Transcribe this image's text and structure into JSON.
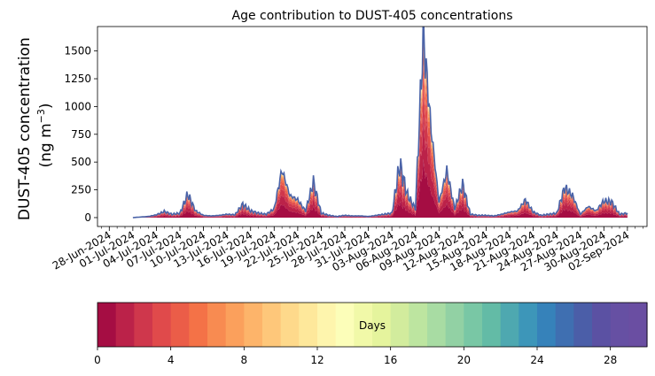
{
  "chart_data": [
    {
      "type": "area",
      "title": "Age contribution to DUST-405 concentrations",
      "ylabel_line1": "DUST-405 concentration",
      "ylabel_line2_prefix": "(ng m",
      "ylabel_line2_sup": "−3",
      "ylabel_line2_suffix": ")",
      "xlabel": "",
      "ylim": [
        -80,
        1720
      ],
      "yticks": [
        0,
        250,
        500,
        750,
        1000,
        1250,
        1500
      ],
      "x_start": "2024-06-28",
      "x_end": "2024-09-03",
      "xlim_days": [
        -1.5,
        68.5
      ],
      "xtick_labels": [
        "28-Jun-2024",
        "01-Jul-2024",
        "04-Jul-2024",
        "07-Jul-2024",
        "10-Jul-2024",
        "13-Jul-2024",
        "16-Jul-2024",
        "19-Jul-2024",
        "22-Jul-2024",
        "25-Jul-2024",
        "28-Jul-2024",
        "31-Jul-2024",
        "03-Aug-2024",
        "06-Aug-2024",
        "09-Aug-2024",
        "12-Aug-2024",
        "15-Aug-2024",
        "18-Aug-2024",
        "21-Aug-2024",
        "24-Aug-2024",
        "27-Aug-2024",
        "30-Aug-2024",
        "02-Sep-2024"
      ],
      "grid": false,
      "total_line_color": "#4a63a8",
      "series": [
        {
          "x": [
            "2024-07-01",
            "2024-07-03",
            "2024-07-04",
            "2024-07-05",
            "2024-07-06",
            "2024-07-07",
            "2024-07-08",
            "2024-07-09",
            "2024-07-10",
            "2024-07-11",
            "2024-07-12",
            "2024-07-13",
            "2024-07-14",
            "2024-07-15",
            "2024-07-16",
            "2024-07-17",
            "2024-07-18",
            "2024-07-19",
            "2024-07-20",
            "2024-07-21",
            "2024-07-22",
            "2024-07-23",
            "2024-07-24",
            "2024-07-25",
            "2024-07-26",
            "2024-07-27",
            "2024-07-28",
            "2024-07-29",
            "2024-07-30",
            "2024-07-31",
            "2024-08-01",
            "2024-08-02",
            "2024-08-03",
            "2024-08-04",
            "2024-08-05",
            "2024-08-06",
            "2024-08-07",
            "2024-08-08",
            "2024-08-09",
            "2024-08-10",
            "2024-08-11",
            "2024-08-12",
            "2024-08-13",
            "2024-08-14",
            "2024-08-15",
            "2024-08-16",
            "2024-08-17",
            "2024-08-18",
            "2024-08-19",
            "2024-08-20",
            "2024-08-21",
            "2024-08-22",
            "2024-08-23",
            "2024-08-24",
            "2024-08-25",
            "2024-08-26",
            "2024-08-27",
            "2024-08-28",
            "2024-08-29",
            "2024-08-30",
            "2024-08-31",
            "2024-09-01",
            "2024-09-02"
          ],
          "values": [
            0,
            10,
            25,
            55,
            30,
            40,
            210,
            60,
            20,
            15,
            20,
            30,
            25,
            120,
            60,
            40,
            30,
            80,
            430,
            200,
            160,
            60,
            320,
            40,
            20,
            10,
            20,
            15,
            15,
            10,
            20,
            30,
            40,
            480,
            200,
            80,
            1650,
            800,
            140,
            420,
            80,
            300,
            30,
            20,
            20,
            15,
            30,
            50,
            60,
            160,
            50,
            20,
            30,
            40,
            270,
            200,
            30,
            100,
            60,
            150,
            140,
            30,
            40
          ]
        }
      ],
      "colorbar": {
        "label": "Days",
        "ticks": [
          0,
          4,
          8,
          12,
          16,
          20,
          24,
          28
        ],
        "range": [
          0,
          30
        ],
        "colors": [
          "#a50d43",
          "#bb2249",
          "#cf374c",
          "#e04a4b",
          "#eb5d48",
          "#f47247",
          "#f88b51",
          "#fba05c",
          "#fdb46a",
          "#fec77a",
          "#fed98b",
          "#fee89b",
          "#fef5ad",
          "#fcfeb9",
          "#f1f9a8",
          "#e5f49d",
          "#d2ec9d",
          "#bde5a0",
          "#a8dca3",
          "#92d1a4",
          "#79c7a5",
          "#63bba6",
          "#4ea8b0",
          "#3d96b9",
          "#3682ba",
          "#3f6fb1",
          "#4b5ea8",
          "#5b51a3",
          "#6650a3",
          "#6a4ea2"
        ]
      }
    }
  ]
}
